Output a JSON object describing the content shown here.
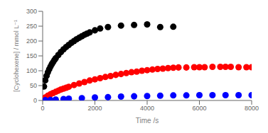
{
  "chart_data": {
    "type": "scatter",
    "xlabel": "Time /s",
    "ylabel": "[Cyclohexene] / mmol L⁻¹",
    "xlim": [
      0,
      8000
    ],
    "ylim": [
      0,
      300
    ],
    "xticks": [
      0,
      2000,
      4000,
      6000,
      8000
    ],
    "yticks": [
      0,
      50,
      100,
      150,
      200,
      250,
      300
    ],
    "series": [
      {
        "color": "#000000",
        "marker": "circle",
        "x": [
          50,
          100,
          150,
          200,
          250,
          300,
          350,
          400,
          450,
          500,
          600,
          700,
          800,
          900,
          1000,
          1100,
          1200,
          1300,
          1400,
          1500,
          1600,
          1700,
          1800,
          2000,
          2200,
          2500,
          3000,
          3500,
          4000,
          4500,
          5000
        ],
        "values": [
          47,
          68,
          83,
          95,
          105,
          114,
          122,
          129,
          136,
          142,
          153,
          163,
          172,
          180,
          187,
          194,
          200,
          206,
          211,
          216,
          221,
          225,
          229,
          236,
          242,
          247,
          252,
          254,
          256,
          247,
          248
        ]
      },
      {
        "color": "#ff0000",
        "marker": "circle",
        "x": [
          100,
          200,
          300,
          400,
          500,
          600,
          700,
          800,
          900,
          1000,
          1200,
          1400,
          1600,
          1800,
          2000,
          2200,
          2400,
          2600,
          2800,
          3000,
          3200,
          3400,
          3600,
          3800,
          4000,
          4200,
          4400,
          4600,
          4800,
          5000,
          5200,
          5500,
          5800,
          6000,
          6200,
          6500,
          6800,
          7000,
          7200,
          7500,
          7800,
          8000
        ],
        "values": [
          10,
          16,
          21,
          25,
          29,
          33,
          37,
          40,
          43,
          46,
          52,
          57,
          62,
          67,
          71,
          75,
          79,
          82,
          86,
          89,
          92,
          95,
          97,
          100,
          102,
          104,
          106,
          107,
          109,
          110,
          111,
          111,
          112,
          112,
          112,
          113,
          113,
          113,
          113,
          112,
          112,
          112
        ]
      },
      {
        "color": "#0000ff",
        "marker": "circle",
        "x": [
          100,
          300,
          500,
          800,
          1000,
          1500,
          2000,
          2500,
          3000,
          3500,
          4000,
          4500,
          5000,
          5500,
          6000,
          6500,
          7000,
          7500,
          8000
        ],
        "values": [
          1,
          2,
          3,
          5,
          6,
          8,
          10,
          11,
          13,
          14,
          15,
          16,
          17,
          17,
          18,
          18,
          18,
          18,
          18
        ]
      }
    ]
  }
}
